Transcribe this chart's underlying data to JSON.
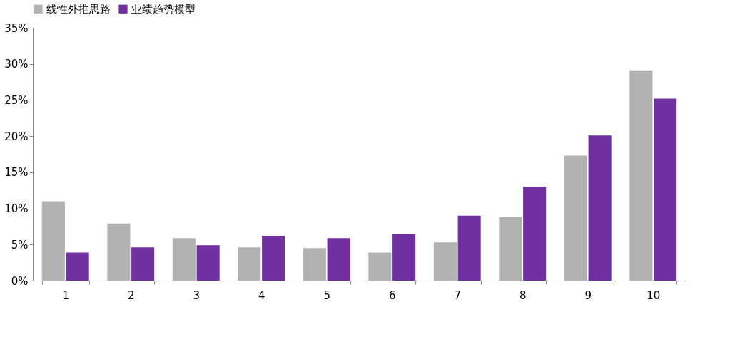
{
  "chart_data": {
    "type": "bar",
    "categories": [
      "1",
      "2",
      "3",
      "4",
      "5",
      "6",
      "7",
      "8",
      "9",
      "10"
    ],
    "series": [
      {
        "name": "线性外推思路",
        "color": "#b2b2b2",
        "values": [
          11.0,
          7.9,
          5.9,
          4.6,
          4.5,
          3.9,
          5.3,
          8.8,
          17.3,
          29.1
        ]
      },
      {
        "name": "业绩趋势模型",
        "color": "#7030a0",
        "values": [
          3.9,
          4.6,
          4.9,
          6.2,
          5.9,
          6.5,
          9.0,
          13.0,
          20.1,
          25.2
        ]
      }
    ],
    "ylim": [
      0,
      35
    ],
    "yticks": [
      {
        "value": 0,
        "label": "0%"
      },
      {
        "value": 5,
        "label": "5%"
      },
      {
        "value": 10,
        "label": "10%"
      },
      {
        "value": 15,
        "label": "15%"
      },
      {
        "value": 20,
        "label": "20%"
      },
      {
        "value": 25,
        "label": "25%"
      },
      {
        "value": 30,
        "label": "30%"
      },
      {
        "value": 35,
        "label": "35%"
      }
    ],
    "grid": false,
    "legend": "top"
  }
}
